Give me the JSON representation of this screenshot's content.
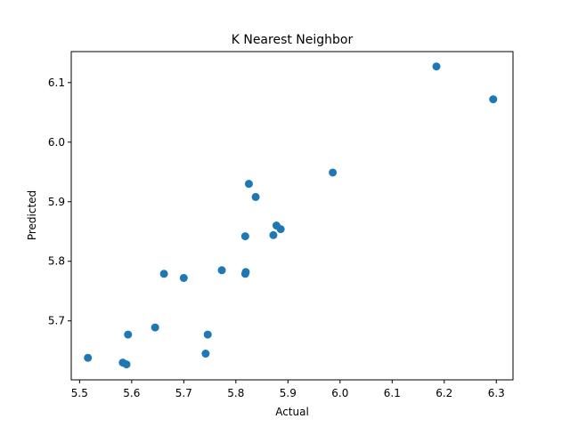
{
  "chart_data": {
    "type": "scatter",
    "title": "K Nearest Neighbor",
    "xlabel": "Actual",
    "ylabel": "Predicted",
    "xlim": [
      5.484,
      6.332
    ],
    "ylim": [
      5.601,
      6.152
    ],
    "xticks": [
      5.5,
      5.6,
      5.7,
      5.8,
      5.9,
      6.0,
      6.1,
      6.2,
      6.3
    ],
    "yticks": [
      5.7,
      5.8,
      5.9,
      6.0,
      6.1
    ],
    "grid": false,
    "marker_color": "#1f77b4",
    "series": [
      {
        "points": [
          [
            5.516,
            5.638
          ],
          [
            5.583,
            5.63
          ],
          [
            5.59,
            5.627
          ],
          [
            5.593,
            5.677
          ],
          [
            5.645,
            5.689
          ],
          [
            5.662,
            5.779
          ],
          [
            5.7,
            5.772
          ],
          [
            5.742,
            5.645
          ],
          [
            5.746,
            5.677
          ],
          [
            5.773,
            5.785
          ],
          [
            5.818,
            5.779
          ],
          [
            5.819,
            5.782
          ],
          [
            5.818,
            5.842
          ],
          [
            5.825,
            5.93
          ],
          [
            5.838,
            5.908
          ],
          [
            5.872,
            5.844
          ],
          [
            5.878,
            5.86
          ],
          [
            5.886,
            5.854
          ],
          [
            5.986,
            5.949
          ],
          [
            6.185,
            6.127
          ],
          [
            6.294,
            6.072
          ]
        ]
      }
    ]
  }
}
